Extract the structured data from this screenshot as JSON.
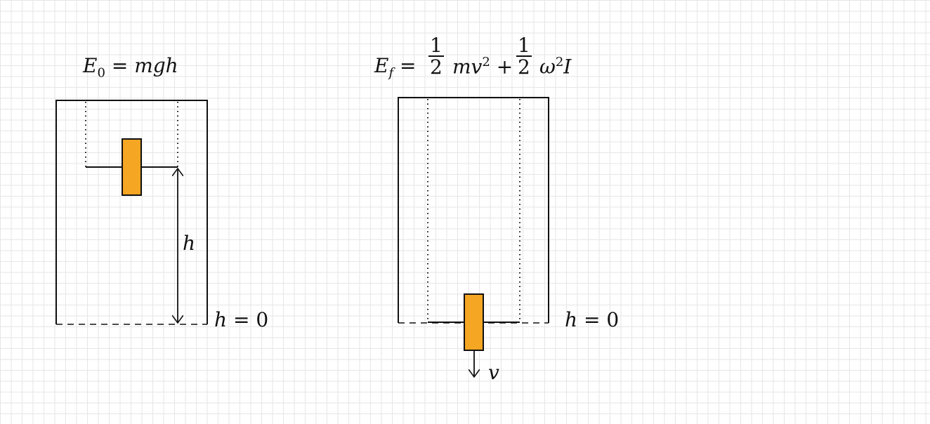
{
  "left_panel": {
    "energy_lhs": "E",
    "energy_sub": "0",
    "energy_eq": "=",
    "energy_rhs": "mgh",
    "height_label": "h",
    "ground_label_var": "h",
    "ground_label_rest": "= 0"
  },
  "right_panel": {
    "energy_lhs": "E",
    "energy_sub": "f",
    "energy_eq": "=",
    "frac1_num": "1",
    "frac1_den": "2",
    "term1": "mv",
    "term1_exp": "2",
    "plus": "+",
    "frac2_num": "1",
    "frac2_den": "2",
    "term2": "ω",
    "term2_exp": "2",
    "term2_tail": "I",
    "ground_label_var": "h",
    "ground_label_rest": "= 0",
    "velocity_label": "v"
  },
  "colors": {
    "block_fill": "#f5a623",
    "stroke": "#111111",
    "grid": "#e6e6e6"
  }
}
